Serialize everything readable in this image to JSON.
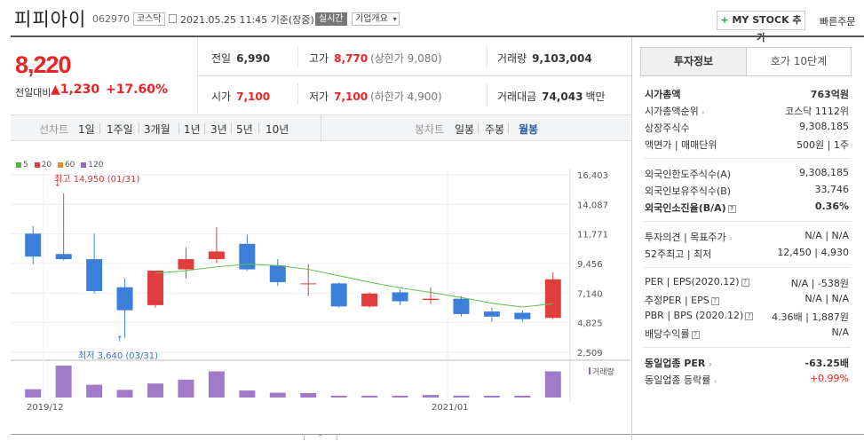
{
  "header": {
    "name": "피피아이",
    "code": "062970",
    "market": "코스닥",
    "date": "2021.05.25 11:45 기준(장중)",
    "realtime": "실시간",
    "company_btn": "기업개요",
    "mystock": "MY STOCK 추가",
    "quick": "빠른주문"
  },
  "quote": {
    "price": "8,220",
    "change_label": "전일대비",
    "change": "1,230",
    "rate": "+17.60%"
  },
  "stats": {
    "prev_label": "전일",
    "prev": "6,990",
    "high_label": "고가",
    "high": "8,770",
    "upper": "(상한가 9,080)",
    "volume_label": "거래량",
    "volume": "9,103,004",
    "open_label": "시가",
    "open": "7,100",
    "low_label": "저가",
    "low": "7,100",
    "lower": "(하한가 4,900)",
    "amount_label": "거래대금",
    "amount": "74,043",
    "amount_unit": "백만"
  },
  "periods": {
    "line_label": "선차트",
    "items": [
      "1일",
      "1주일",
      "3개월",
      "1년",
      "3년",
      "5년",
      "10년"
    ],
    "candle_label": "봉차트",
    "candle_items": [
      "일봉",
      "주봉",
      "월봉"
    ]
  },
  "colors": {
    "up": "#e23d3d",
    "down": "#3b7fd9",
    "ma20": "#5cc04a",
    "volume": "#a27bc8"
  },
  "chart_data": {
    "type": "candlestick",
    "legend": [
      {
        "name": "5",
        "color": "#53b44a"
      },
      {
        "name": "20",
        "color": "#e23d3d"
      },
      {
        "name": "60",
        "color": "#f08a24"
      },
      {
        "name": "120",
        "color": "#8e6ac0"
      }
    ],
    "yticks": [
      "16,403",
      "14,087",
      "11,771",
      "9,456",
      "7,140",
      "4,825",
      "2,509"
    ],
    "ytick_values": [
      16403,
      14087,
      11771,
      9456,
      7140,
      4825,
      2509
    ],
    "xlabels": [
      "2019/12",
      "2021/01"
    ],
    "max_label": "최고 14,950 (01/31)",
    "min_label": "최저 3,640 (03/31)",
    "volume_label": "거래량",
    "candles": [
      {
        "o": 11800,
        "c": 10000,
        "h": 12400,
        "l": 9400
      },
      {
        "o": 10200,
        "c": 9800,
        "h": 14950,
        "l": 9700
      },
      {
        "o": 9800,
        "c": 7300,
        "h": 11800,
        "l": 7100
      },
      {
        "o": 7600,
        "c": 5800,
        "h": 8300,
        "l": 3640
      },
      {
        "o": 6200,
        "c": 8900,
        "h": 8900,
        "l": 6000
      },
      {
        "o": 9000,
        "c": 9800,
        "h": 10700,
        "l": 8300
      },
      {
        "o": 9800,
        "c": 10400,
        "h": 12300,
        "l": 9500
      },
      {
        "o": 11000,
        "c": 9000,
        "h": 11700,
        "l": 8900
      },
      {
        "o": 9300,
        "c": 8000,
        "h": 9800,
        "l": 7700
      },
      {
        "o": 7900,
        "c": 7900,
        "h": 9400,
        "l": 6900
      },
      {
        "o": 7900,
        "c": 6100,
        "h": 8000,
        "l": 6000
      },
      {
        "o": 6100,
        "c": 7100,
        "h": 7200,
        "l": 6000
      },
      {
        "o": 7200,
        "c": 6500,
        "h": 7400,
        "l": 6200
      },
      {
        "o": 6600,
        "c": 6700,
        "h": 7600,
        "l": 6300
      },
      {
        "o": 6700,
        "c": 5500,
        "h": 6900,
        "l": 5300
      },
      {
        "o": 5700,
        "c": 5300,
        "h": 6000,
        "l": 4900
      },
      {
        "o": 5600,
        "c": 5100,
        "h": 5800,
        "l": 4900
      },
      {
        "o": 5200,
        "c": 8220,
        "h": 8770,
        "l": 5100
      }
    ],
    "ma20": [
      null,
      null,
      null,
      null,
      8700,
      8900,
      9200,
      9400,
      9300,
      9000,
      8500,
      8000,
      7550,
      7200,
      6800,
      6350,
      6050,
      6300
    ],
    "volume": [
      0.26,
      1.0,
      0.4,
      0.24,
      0.44,
      0.56,
      0.82,
      0.22,
      0.15,
      0.14,
      0.03,
      0.04,
      0.05,
      0.08,
      0.06,
      0.04,
      0.03,
      0.82
    ]
  },
  "tabs": {
    "invest": "투자정보",
    "hoga": "호가 10단계"
  },
  "info": {
    "mcap_label": "시가총액",
    "mcap": "763억원",
    "rank_label": "시가총액순위",
    "rank": "코스닥 1112위",
    "shares_label": "상장주식수",
    "shares": "9,308,185",
    "par_label": "액면가 | 매매단위",
    "par": "500원 | 1주",
    "foreign_limit_label": "외국인한도주식수(A)",
    "foreign_limit": "9,308,185",
    "foreign_hold_label": "외국인보유주식수(B)",
    "foreign_hold": "33,746",
    "foreign_rate_label": "외국인소진율(B/A)",
    "foreign_rate": "0.36%",
    "opinion_label": "투자의견 | 목표주가",
    "opinion": "N/A | N/A",
    "w52_label": "52주최고 | 최저",
    "w52": "12,450 | 4,930",
    "per_label": "PER | EPS(2020.12)",
    "per": "N/A | -538원",
    "est_label": "추정PER | EPS",
    "est": "N/A | N/A",
    "pbr_label": "PBR | BPS (2020.12)",
    "pbr": "4.36배 | 1,887원",
    "div_label": "배당수익률",
    "div": "N/A",
    "ind_per_label": "동일업종 PER",
    "ind_per": "-63.25배",
    "ind_rate_label": "동일업종 등락률",
    "ind_rate": "+0.99%"
  }
}
